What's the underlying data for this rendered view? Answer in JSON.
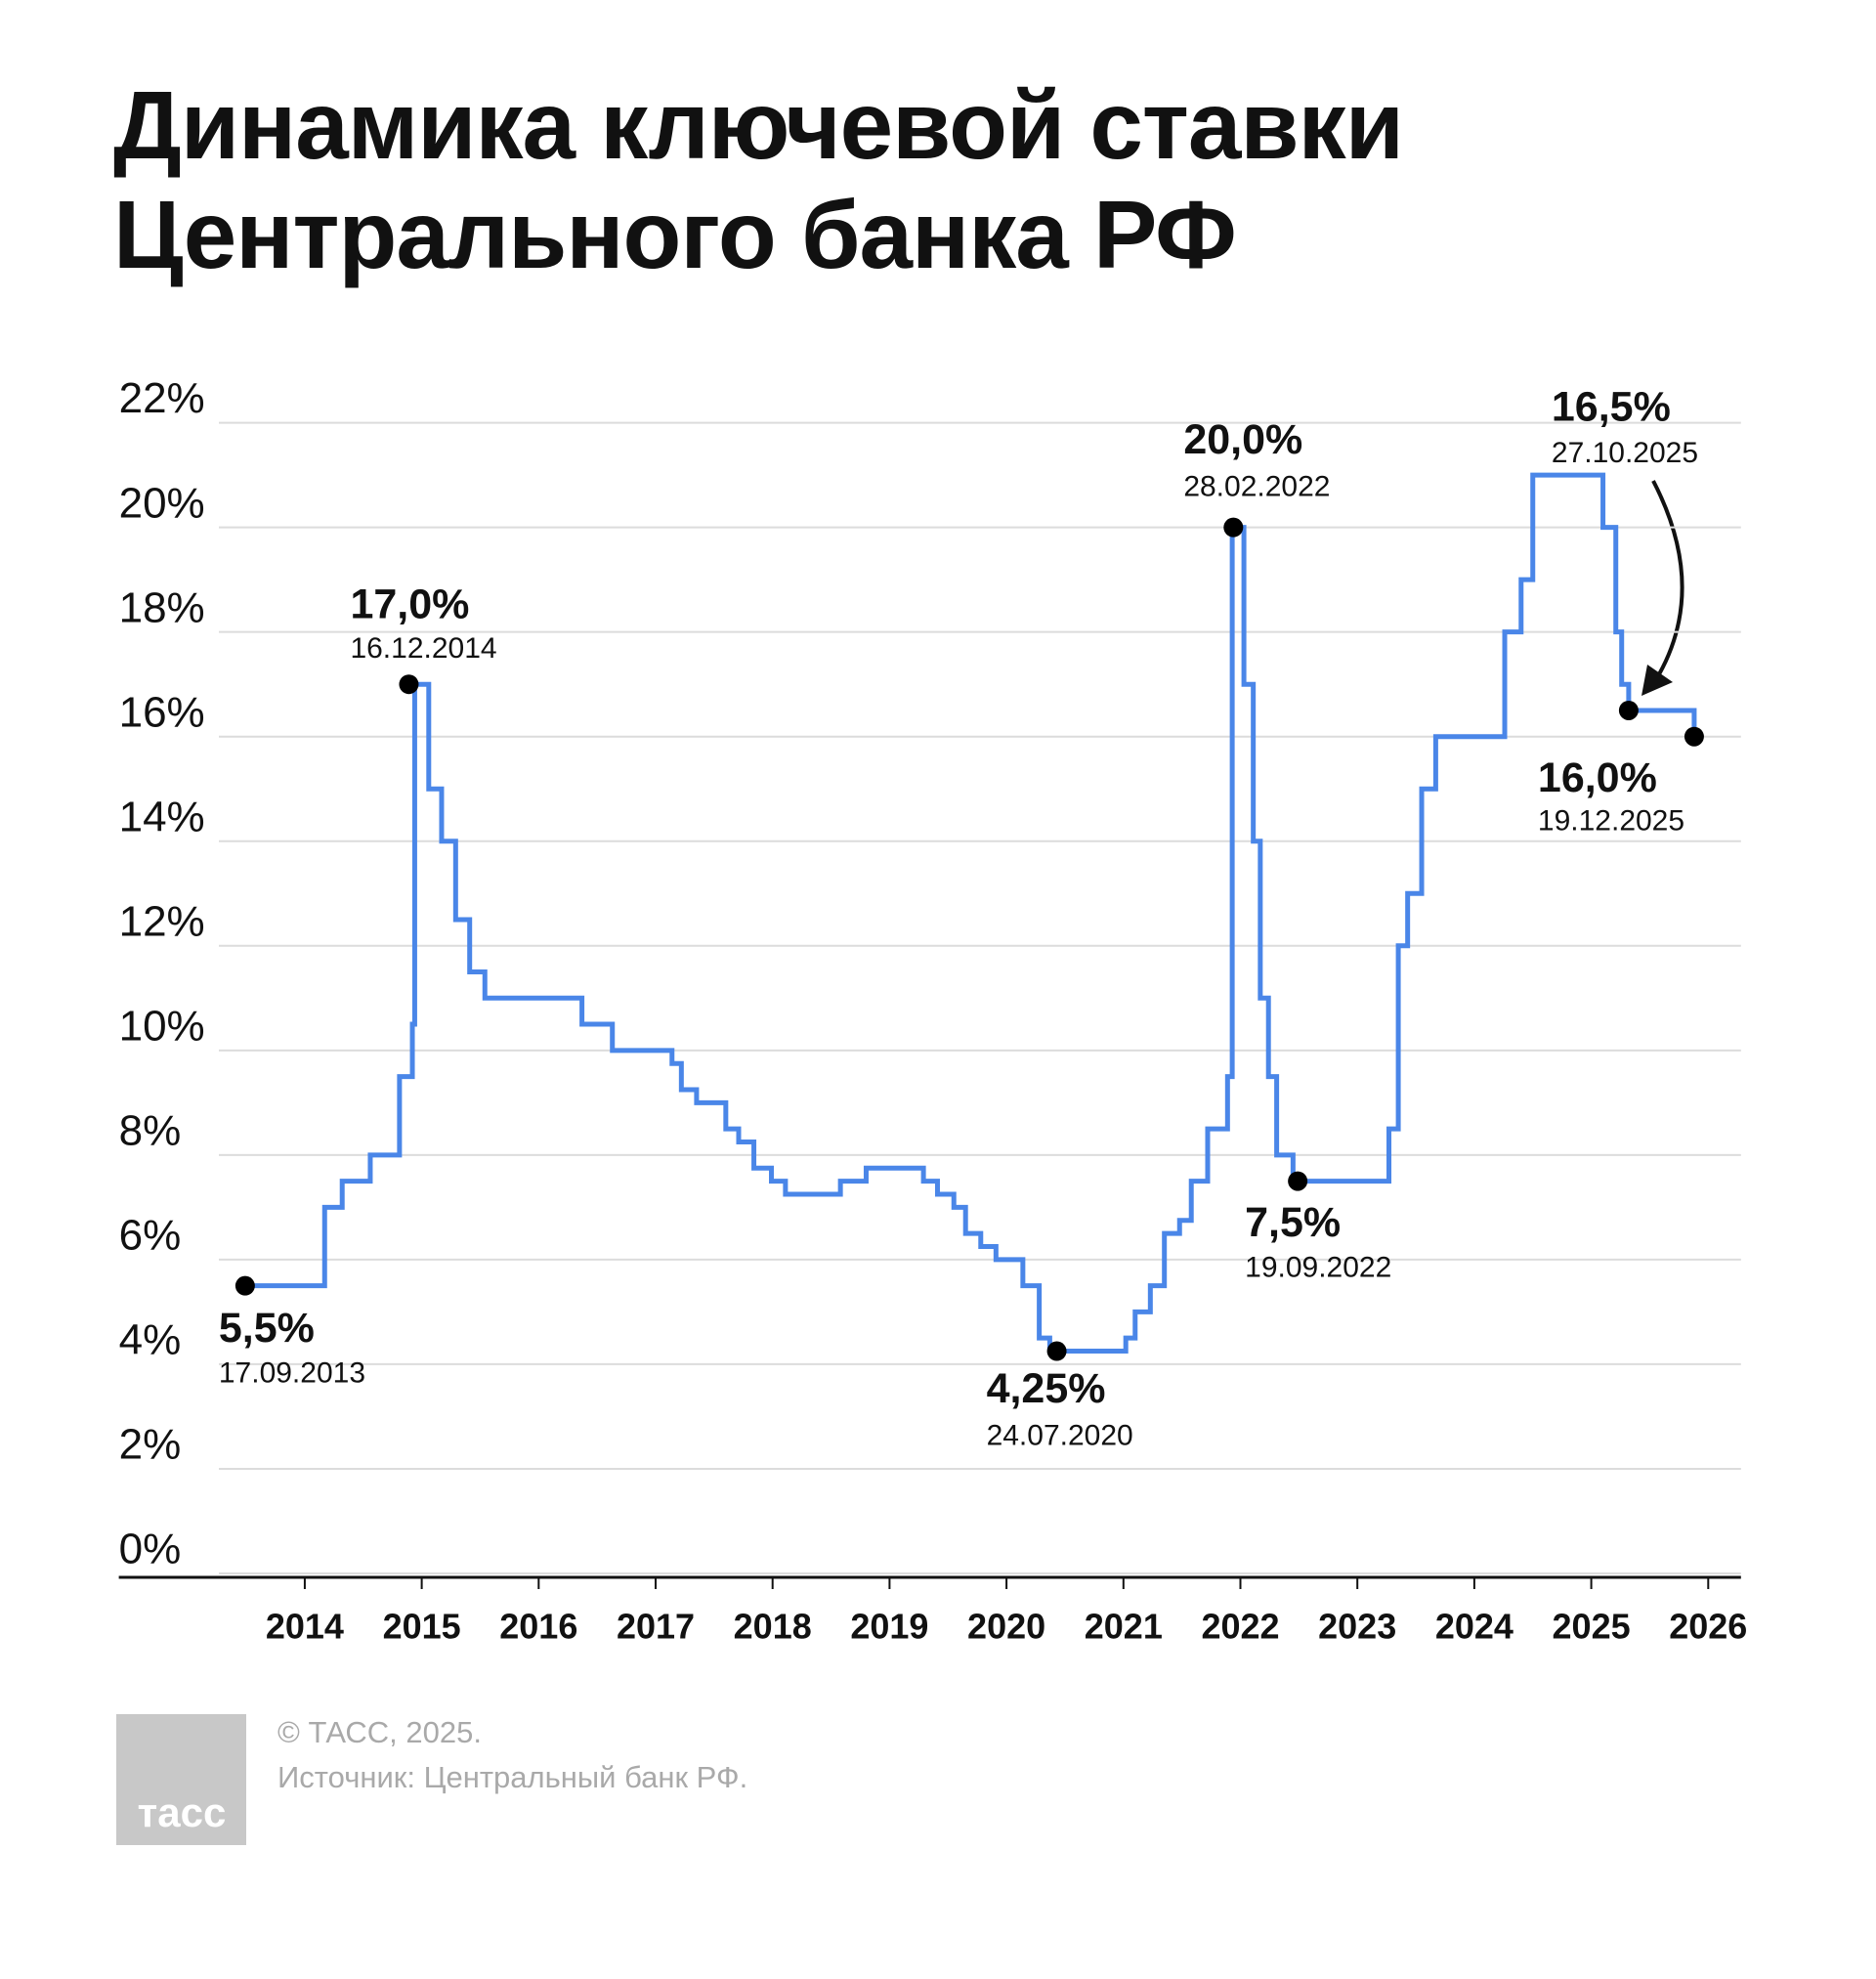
{
  "chart_data": {
    "type": "line",
    "step": "post",
    "title": "Динамика ключевой ставки Центрального банка РФ",
    "color": "#4a86e8",
    "grid": true,
    "x": [
      2013.49,
      2014.17,
      2014.32,
      2014.56,
      2014.81,
      2014.92,
      2014.94,
      2015.06,
      2015.17,
      2015.29,
      2015.41,
      2015.54,
      2016.37,
      2016.63,
      2017.14,
      2017.22,
      2017.35,
      2017.6,
      2017.71,
      2017.84,
      2017.99,
      2018.11,
      2018.58,
      2018.8,
      2019.29,
      2019.41,
      2019.55,
      2019.65,
      2019.78,
      2019.91,
      2020.14,
      2020.28,
      2020.37,
      2021.02,
      2021.1,
      2021.23,
      2021.35,
      2021.48,
      2021.58,
      2021.72,
      2021.89,
      2021.93,
      2022.03,
      2022.11,
      2022.17,
      2022.24,
      2022.31,
      2022.45,
      2023.27,
      2023.35,
      2023.43,
      2023.55,
      2023.67,
      2024.26,
      2024.4,
      2024.5,
      2025.1,
      2025.21,
      2025.26,
      2025.32,
      2025.88
    ],
    "values": [
      5.5,
      7,
      7.5,
      8,
      9.5,
      10.5,
      17,
      15,
      14,
      12.5,
      11.5,
      11,
      10.5,
      10,
      9.75,
      9.25,
      9,
      8.5,
      8.25,
      7.75,
      7.5,
      7.25,
      7.5,
      7.75,
      7.5,
      7.25,
      7,
      6.5,
      6.25,
      6,
      5.5,
      4.5,
      4.25,
      4.5,
      5,
      5.5,
      6.5,
      6.75,
      7.5,
      8.5,
      9.5,
      20,
      17,
      14,
      11,
      9.5,
      8,
      7.5,
      8.5,
      12,
      13,
      15,
      16,
      18,
      19,
      21,
      20,
      18,
      17,
      16.5,
      16
    ],
    "xlim": [
      2012.41,
      2026.28
    ],
    "xticks": [
      2014,
      2015,
      2016,
      2017,
      2018,
      2019,
      2020,
      2021,
      2022,
      2023,
      2024,
      2025,
      2026
    ],
    "ylim": [
      0,
      22
    ],
    "yticks": [
      {
        "value": 0,
        "label": "0%"
      },
      {
        "value": 2,
        "label": "2%"
      },
      {
        "value": 4,
        "label": "4%"
      },
      {
        "value": 6,
        "label": "6%"
      },
      {
        "value": 8,
        "label": "8%"
      },
      {
        "value": 10,
        "label": "10%"
      },
      {
        "value": 12,
        "label": "12%"
      },
      {
        "value": 14,
        "label": "14%"
      },
      {
        "value": 16,
        "label": "16%"
      },
      {
        "value": 18,
        "label": "18%"
      },
      {
        "value": 20,
        "label": "20%"
      },
      {
        "value": 22,
        "label": "22%"
      }
    ],
    "annotations": [
      {
        "x": 2013.49,
        "value": 5.5,
        "label": "5,5%",
        "date": "17.09.2013"
      },
      {
        "x": 2014.89,
        "value": 17,
        "label": "17,0%",
        "date": "16.12.2014"
      },
      {
        "x": 2021.94,
        "value": 20,
        "label": "20,0%",
        "date": "28.02.2022"
      },
      {
        "x": 2020.43,
        "value": 4.25,
        "label": "4,25%",
        "date": "24.07.2020"
      },
      {
        "x": 2022.49,
        "value": 7.5,
        "label": "7,5%",
        "date": "19.09.2022"
      },
      {
        "x": 2025.32,
        "value": 16.5,
        "label": "16,5%",
        "date": "27.10.2025"
      },
      {
        "x": 2025.88,
        "value": 16,
        "label": "16,0%",
        "date": "19.12.2025"
      }
    ]
  },
  "footer": {
    "logo": "тасс",
    "copyright": "© ТАСС, 2025.",
    "source": "Источник: Центральный банк РФ."
  }
}
